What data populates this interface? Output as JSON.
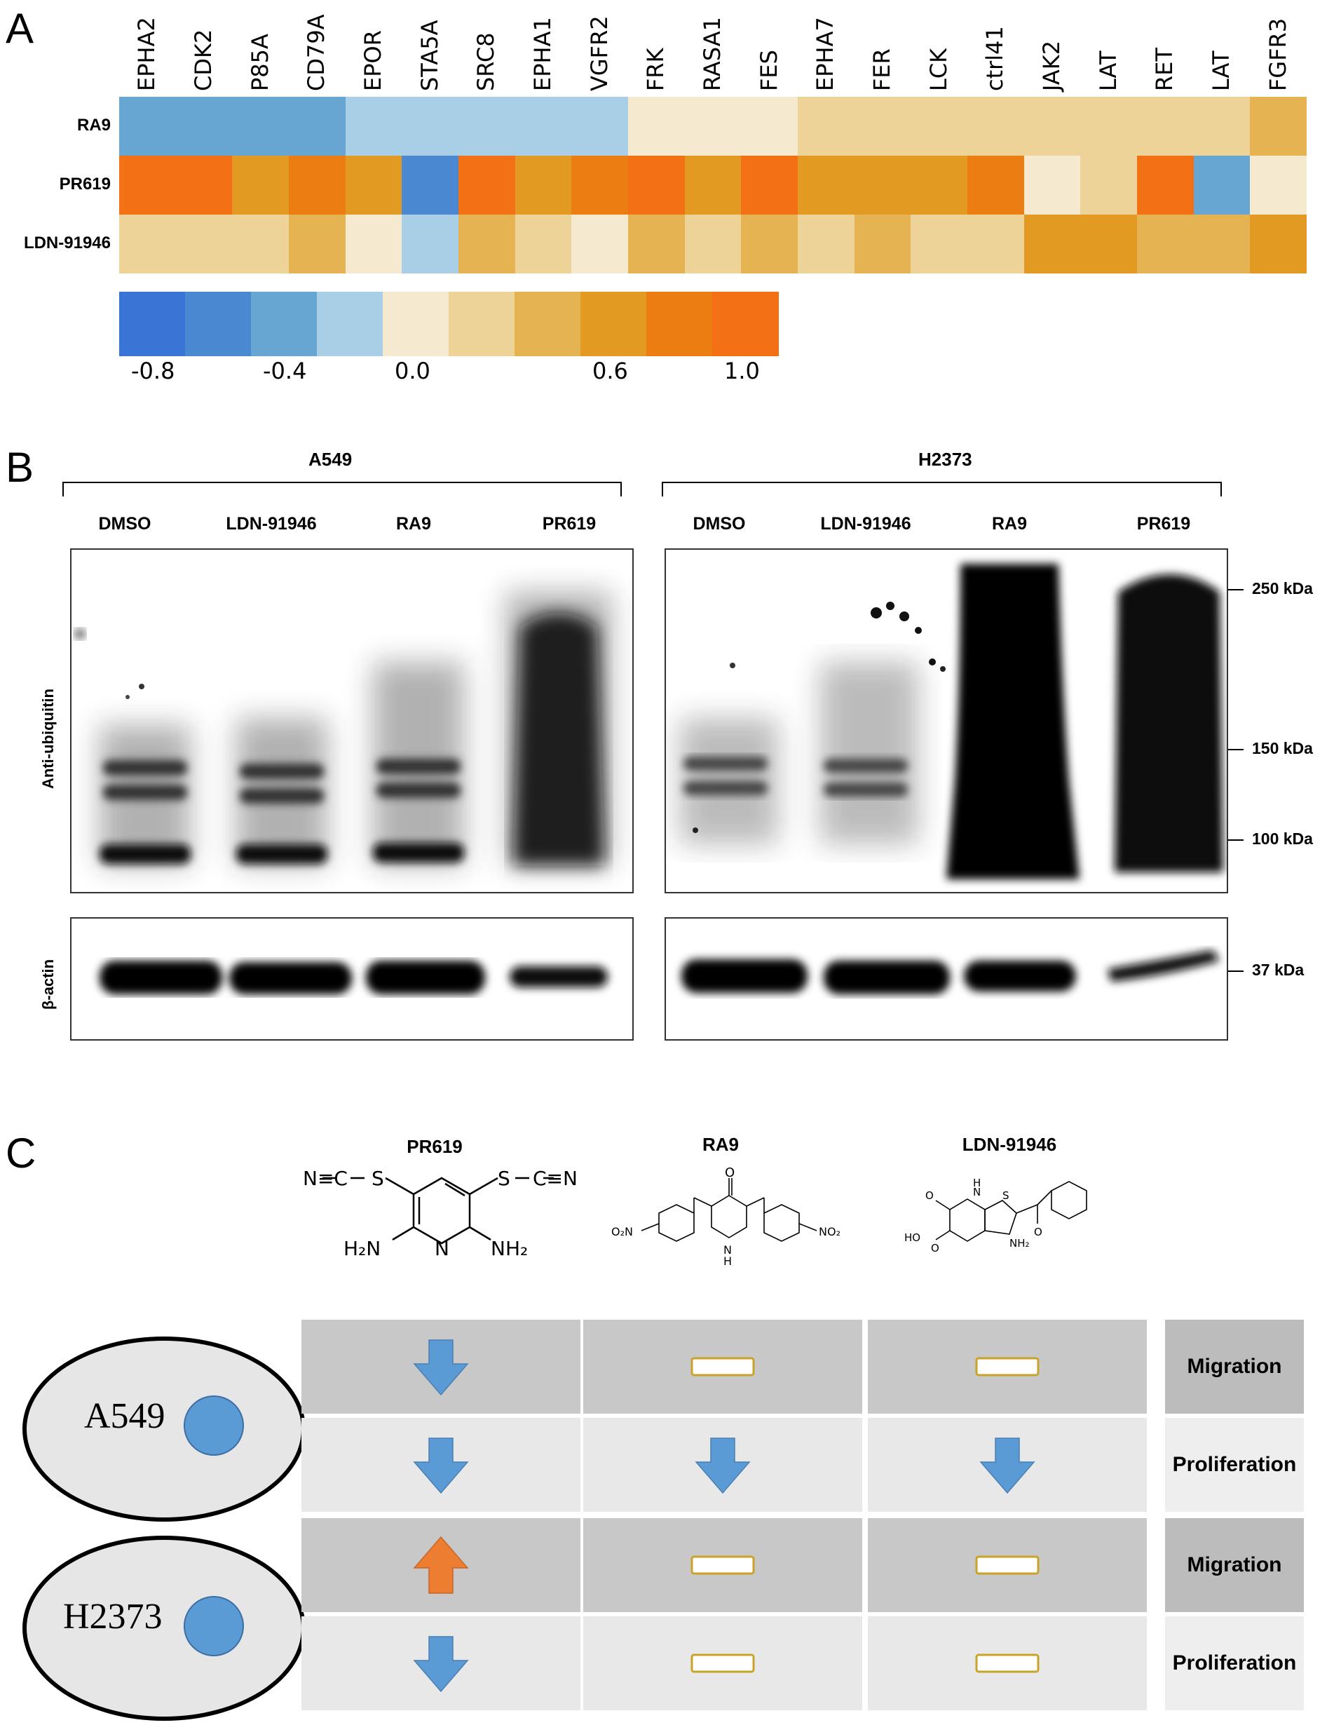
{
  "panels": {
    "a": "A",
    "b": "B",
    "c": "C"
  },
  "heatmap": {
    "columns": [
      "EPHA2",
      "CDK2",
      "P85A",
      "CD79A",
      "EPOR",
      "STA5A",
      "SRC8",
      "EPHA1",
      "VGFR2",
      "FRK",
      "RASA1",
      "FES",
      "EPHA7",
      "FER",
      "LCK",
      "ctrl41",
      "JAK2",
      "LAT",
      "RET",
      "LAT",
      "FGFR3"
    ],
    "rows": [
      "RA9",
      "PR619",
      "LDN-91946"
    ],
    "values": [
      [
        -0.45,
        -0.4,
        -0.35,
        -0.35,
        -0.25,
        -0.25,
        -0.2,
        -0.2,
        -0.15,
        -0.1,
        -0.05,
        0.0,
        0.1,
        0.1,
        0.1,
        0.1,
        0.2,
        0.2,
        0.2,
        0.2,
        0.45
      ],
      [
        0.9,
        1.0,
        0.7,
        0.85,
        0.6,
        -0.7,
        0.9,
        0.7,
        0.75,
        1.0,
        0.65,
        1.0,
        0.5,
        0.6,
        0.5,
        0.8,
        -0.05,
        0.15,
        1.0,
        -0.5,
        0.05
      ],
      [
        0.25,
        0.25,
        0.2,
        0.3,
        0.05,
        -0.25,
        0.45,
        0.1,
        0.05,
        0.35,
        0.2,
        0.3,
        0.1,
        0.35,
        0.25,
        0.1,
        0.5,
        0.5,
        0.35,
        0.4,
        0.5
      ]
    ],
    "colorbar": {
      "colors": [
        "#3a75d6",
        "#4a89d2",
        "#67a5d2",
        "#a9cfe6",
        "#f5ead0",
        "#eed398",
        "#e6b352",
        "#e39a22",
        "#ec7d12",
        "#f47014"
      ],
      "ticks": [
        "-0.8",
        "-0.4",
        "0.0",
        "0.6",
        "1.0"
      ]
    }
  },
  "western": {
    "left_title": "A549",
    "right_title": "H2373",
    "lanes_left": [
      "DMSO",
      "LDN-91946",
      "RA9",
      "PR619"
    ],
    "lanes_right": [
      "DMSO",
      "LDN-91946",
      "RA9",
      "PR619"
    ],
    "ylabel_top": "Anti-ubiquitin",
    "ylabel_bottom": "β-actin",
    "markers": [
      "250 kDa",
      "150 kDa",
      "100 kDa",
      "37 kDa"
    ]
  },
  "compounds": {
    "pr619": "PR619",
    "ra9": "RA9",
    "ldn": "LDN-91946"
  },
  "summary": {
    "cells": [
      "A549",
      "H2373"
    ],
    "row_labels": [
      "Migration",
      "Proliferation",
      "Migration",
      "Proliferation"
    ],
    "grid": [
      [
        "down",
        "none",
        "none"
      ],
      [
        "down",
        "down",
        "down"
      ],
      [
        "up",
        "none",
        "none"
      ],
      [
        "down",
        "none",
        "none"
      ]
    ],
    "colors": {
      "down": "#5b9bd5",
      "up": "#ed7d31",
      "dark_row": "#c8c8c8",
      "light_row": "#e8e8e8",
      "label_dark": "#bcbcbc",
      "label_light": "#eeeeee"
    }
  }
}
